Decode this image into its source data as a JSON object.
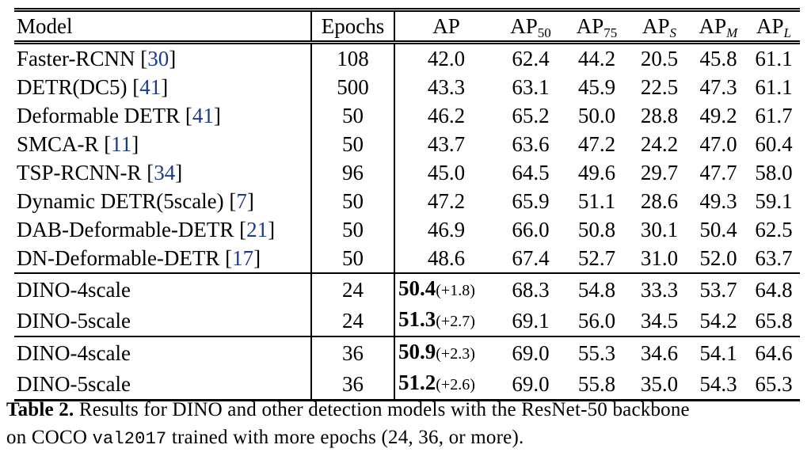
{
  "colors": {
    "citation_blue": "#1b3a8c",
    "text": "#000000",
    "background": "#ffffff"
  },
  "table": {
    "header": {
      "model": "Model",
      "epochs": "Epochs",
      "ap": "AP",
      "ap50": {
        "base": "AP",
        "sub": "50"
      },
      "ap75": {
        "base": "AP",
        "sub": "75"
      },
      "aps": {
        "base": "AP",
        "sub": "S"
      },
      "apm": {
        "base": "AP",
        "sub": "M"
      },
      "apl": {
        "base": "AP",
        "sub": "L"
      }
    },
    "groups": [
      {
        "rows": [
          {
            "model": "Faster-RCNN",
            "cite": "30",
            "epochs": "108",
            "ap": "42.0",
            "ap50": "62.4",
            "ap75": "44.2",
            "aps": "20.5",
            "apm": "45.8",
            "apl": "61.1"
          },
          {
            "model": "DETR(DC5)",
            "cite": "41",
            "epochs": "500",
            "ap": "43.3",
            "ap50": "63.1",
            "ap75": "45.9",
            "aps": "22.5",
            "apm": "47.3",
            "apl": "61.1"
          },
          {
            "model": "Deformable DETR",
            "cite": "41",
            "epochs": "50",
            "ap": "46.2",
            "ap50": "65.2",
            "ap75": "50.0",
            "aps": "28.8",
            "apm": "49.2",
            "apl": "61.7"
          },
          {
            "model": "SMCA-R",
            "cite": "11",
            "epochs": "50",
            "ap": "43.7",
            "ap50": "63.6",
            "ap75": "47.2",
            "aps": "24.2",
            "apm": "47.0",
            "apl": "60.4"
          },
          {
            "model": "TSP-RCNN-R",
            "cite": "34",
            "epochs": "96",
            "ap": "45.0",
            "ap50": "64.5",
            "ap75": "49.6",
            "aps": "29.7",
            "apm": "47.7",
            "apl": "58.0"
          },
          {
            "model": "Dynamic DETR(5scale)",
            "cite": "7",
            "epochs": "50",
            "ap": "47.2",
            "ap50": "65.9",
            "ap75": "51.1",
            "aps": "28.6",
            "apm": "49.3",
            "apl": "59.1"
          },
          {
            "model": "DAB-Deformable-DETR",
            "cite": "21",
            "epochs": "50",
            "ap": "46.9",
            "ap50": "66.0",
            "ap75": "50.8",
            "aps": "30.1",
            "apm": "50.4",
            "apl": "62.5"
          },
          {
            "model": "DN-Deformable-DETR",
            "cite": "17",
            "epochs": "50",
            "ap": "48.6",
            "ap50": "67.4",
            "ap75": "52.7",
            "aps": "31.0",
            "apm": "52.0",
            "apl": "63.7"
          }
        ]
      },
      {
        "rows": [
          {
            "model": "DINO-4scale",
            "epochs": "24",
            "ap": "50.4",
            "ap_bold": true,
            "delta": "(+1.8)",
            "ap50": "68.3",
            "ap75": "54.8",
            "aps": "33.3",
            "apm": "53.7",
            "apl": "64.8"
          },
          {
            "model": "DINO-5scale",
            "epochs": "24",
            "ap": "51.3",
            "ap_bold": true,
            "delta": "(+2.7)",
            "ap50": "69.1",
            "ap75": "56.0",
            "aps": "34.5",
            "apm": "54.2",
            "apl": "65.8"
          }
        ]
      },
      {
        "rows": [
          {
            "model": "DINO-4scale",
            "epochs": "36",
            "ap": "50.9",
            "ap_bold": true,
            "delta": "(+2.3)",
            "ap50": "69.0",
            "ap75": "55.3",
            "aps": "34.6",
            "apm": "54.1",
            "apl": "64.6"
          },
          {
            "model": "DINO-5scale",
            "epochs": "36",
            "ap": "51.2",
            "ap_bold": true,
            "delta": "(+2.6)",
            "ap50": "69.0",
            "ap75": "55.8",
            "aps": "35.0",
            "apm": "54.3",
            "apl": "65.3"
          }
        ]
      }
    ]
  },
  "caption": {
    "line1_bold": "Table 2.",
    "line1_rest": " Results for DINO and other detection models with the ResNet-50 backbone",
    "line2_pre": "on COCO ",
    "line2_mono": "val2017",
    "line2_post": " trained with more epochs (24, 36, or more)."
  }
}
